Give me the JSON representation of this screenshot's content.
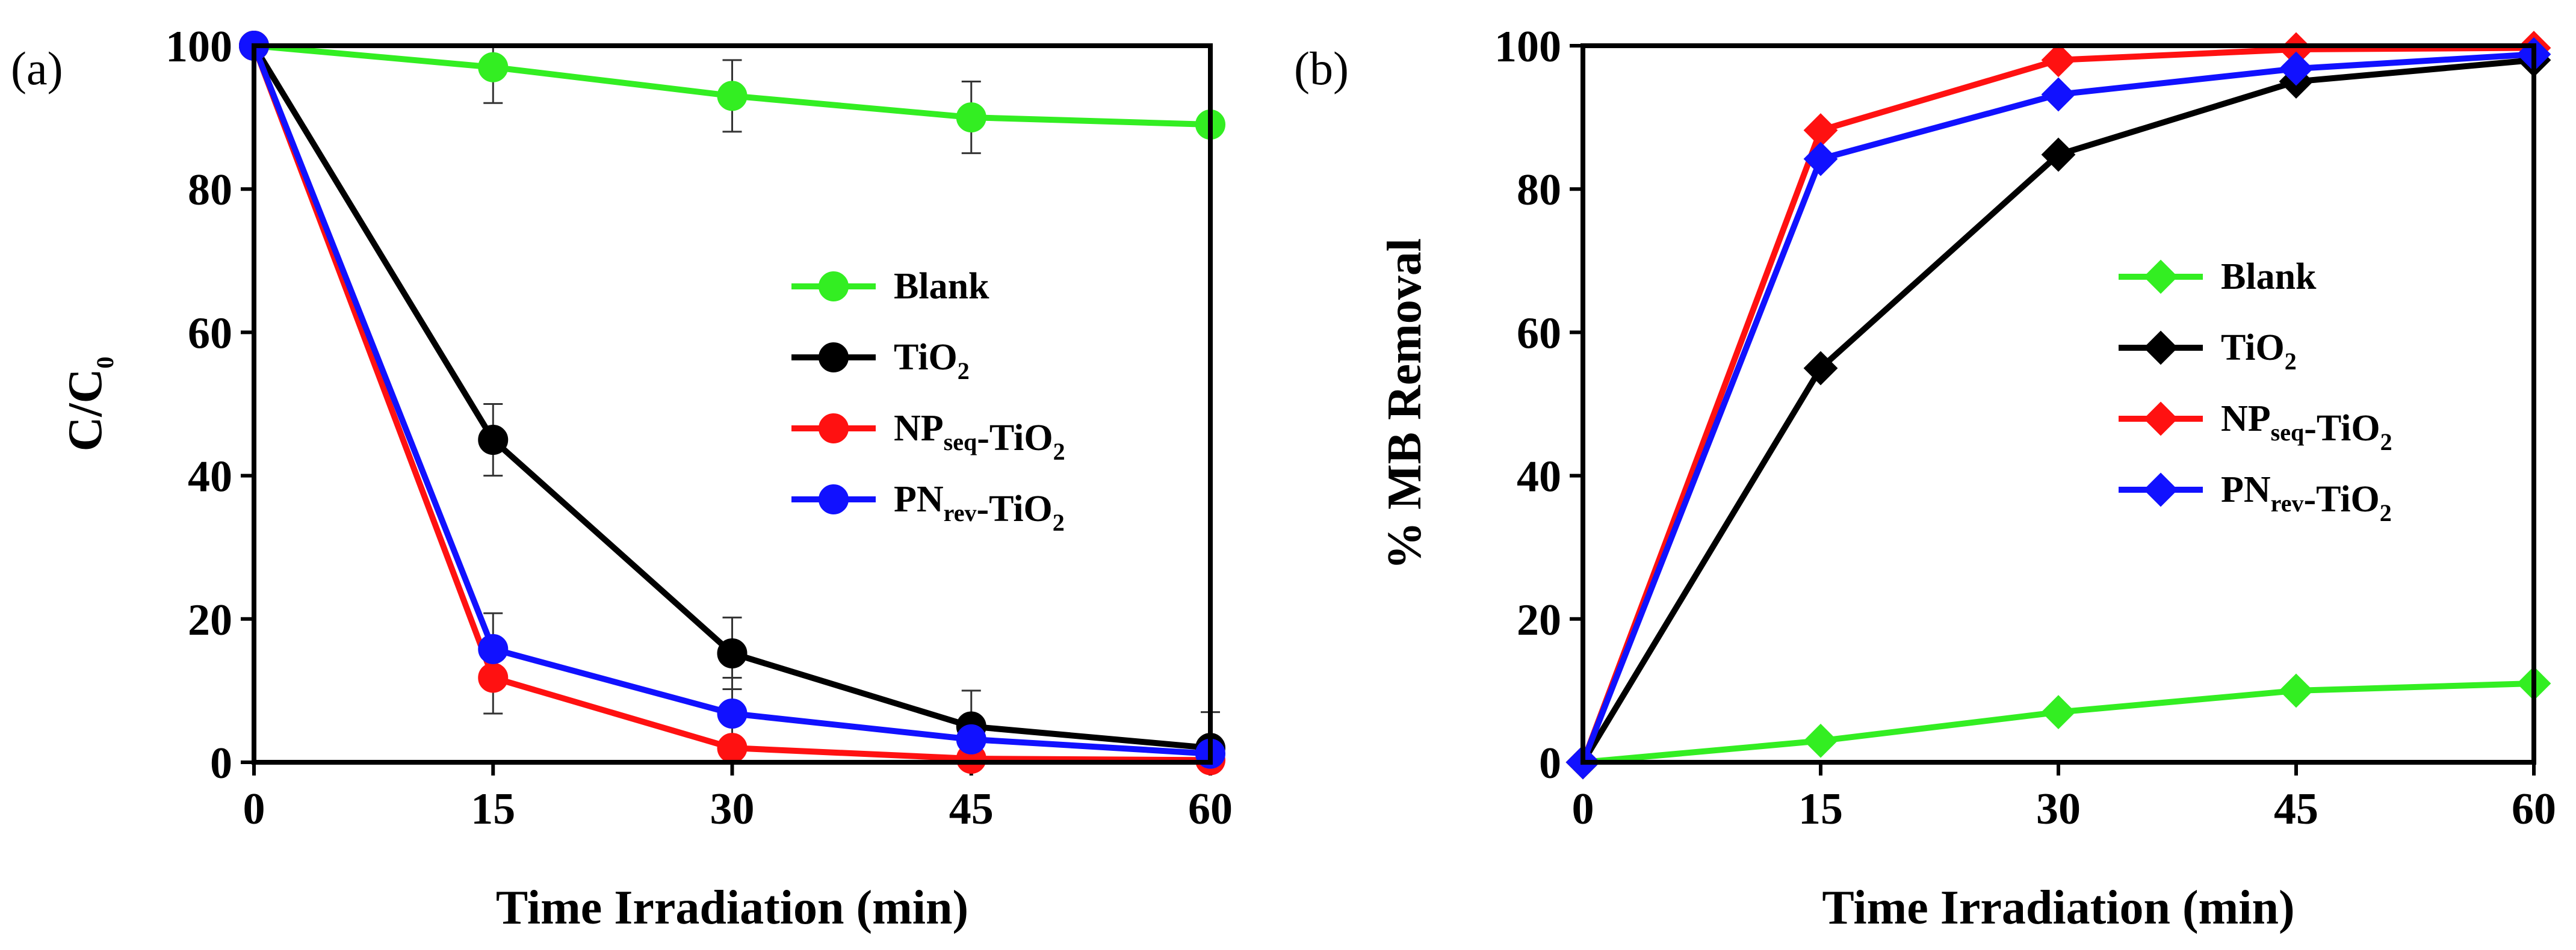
{
  "chart_data": [
    {
      "type": "line",
      "panel_label": "(a)",
      "title": "",
      "xlabel": "Time Irradiation (min)",
      "ylabel": {
        "main": "C/C",
        "sub": "0"
      },
      "xlim": [
        0,
        60
      ],
      "ylim": [
        0,
        100
      ],
      "xticks": [
        0,
        15,
        30,
        45,
        60
      ],
      "yticks": [
        0,
        20,
        40,
        60,
        80,
        100
      ],
      "marker": "circle",
      "legend_position": "center-right",
      "x": [
        0,
        15,
        30,
        45,
        60
      ],
      "series": [
        {
          "name": "Blank",
          "label_parts": [
            {
              "t": "Blank"
            }
          ],
          "color": "#33ee22",
          "values": [
            100,
            97,
            93,
            90,
            89
          ],
          "errors": [
            0,
            5,
            5,
            5,
            0
          ]
        },
        {
          "name": "TiO2",
          "label_parts": [
            {
              "t": "TiO"
            },
            {
              "t": "2",
              "sub": true
            }
          ],
          "color": "#000000",
          "values": [
            100,
            45,
            15.2,
            5,
            2
          ],
          "errors": [
            0,
            5,
            5,
            5,
            5
          ]
        },
        {
          "name": "NPseq-TiO2",
          "label_parts": [
            {
              "t": "NP"
            },
            {
              "t": "seq",
              "sub": true
            },
            {
              "t": "-TiO"
            },
            {
              "t": "2",
              "sub": true
            }
          ],
          "color": "#ff1111",
          "values": [
            100,
            11.8,
            2,
            0.5,
            0.3
          ],
          "errors": [
            0,
            5,
            0,
            0,
            0
          ]
        },
        {
          "name": "PNrev-TiO2",
          "label_parts": [
            {
              "t": "PN"
            },
            {
              "t": "rev",
              "sub": true
            },
            {
              "t": "-TiO"
            },
            {
              "t": "2",
              "sub": true
            }
          ],
          "color": "#1111ff",
          "values": [
            100,
            15.8,
            6.8,
            3.2,
            1.2
          ],
          "errors": [
            0,
            5,
            5,
            0,
            0
          ]
        }
      ]
    },
    {
      "type": "line",
      "panel_label": "(b)",
      "title": "",
      "xlabel": "Time Irradiation (min)",
      "ylabel": {
        "main": "% MB Removal",
        "sub": ""
      },
      "xlim": [
        0,
        60
      ],
      "ylim": [
        0,
        100
      ],
      "xticks": [
        0,
        15,
        30,
        45,
        60
      ],
      "yticks": [
        0,
        20,
        40,
        60,
        80,
        100
      ],
      "marker": "diamond",
      "legend_position": "lower-right",
      "x": [
        0,
        15,
        30,
        45,
        60
      ],
      "series": [
        {
          "name": "Blank",
          "label_parts": [
            {
              "t": "Blank"
            }
          ],
          "color": "#33ee22",
          "values": [
            0,
            3,
            7,
            10,
            11
          ],
          "errors": [
            0,
            0,
            0,
            0,
            0
          ]
        },
        {
          "name": "TiO2",
          "label_parts": [
            {
              "t": "TiO"
            },
            {
              "t": "2",
              "sub": true
            }
          ],
          "color": "#000000",
          "values": [
            0,
            55,
            84.8,
            95,
            98
          ],
          "errors": [
            0,
            0,
            0,
            0,
            0
          ]
        },
        {
          "name": "NPseq-TiO2",
          "label_parts": [
            {
              "t": "NP"
            },
            {
              "t": "seq",
              "sub": true
            },
            {
              "t": "-TiO"
            },
            {
              "t": "2",
              "sub": true
            }
          ],
          "color": "#ff1111",
          "values": [
            0,
            88.2,
            98,
            99.5,
            99.7
          ],
          "errors": [
            0,
            0,
            0,
            0,
            0
          ]
        },
        {
          "name": "PNrev-TiO2",
          "label_parts": [
            {
              "t": "PN"
            },
            {
              "t": "rev",
              "sub": true
            },
            {
              "t": "-TiO"
            },
            {
              "t": "2",
              "sub": true
            }
          ],
          "color": "#1111ff",
          "values": [
            0,
            84.2,
            93.2,
            96.8,
            98.8
          ],
          "errors": [
            0,
            0,
            0,
            0,
            0
          ]
        }
      ]
    }
  ]
}
